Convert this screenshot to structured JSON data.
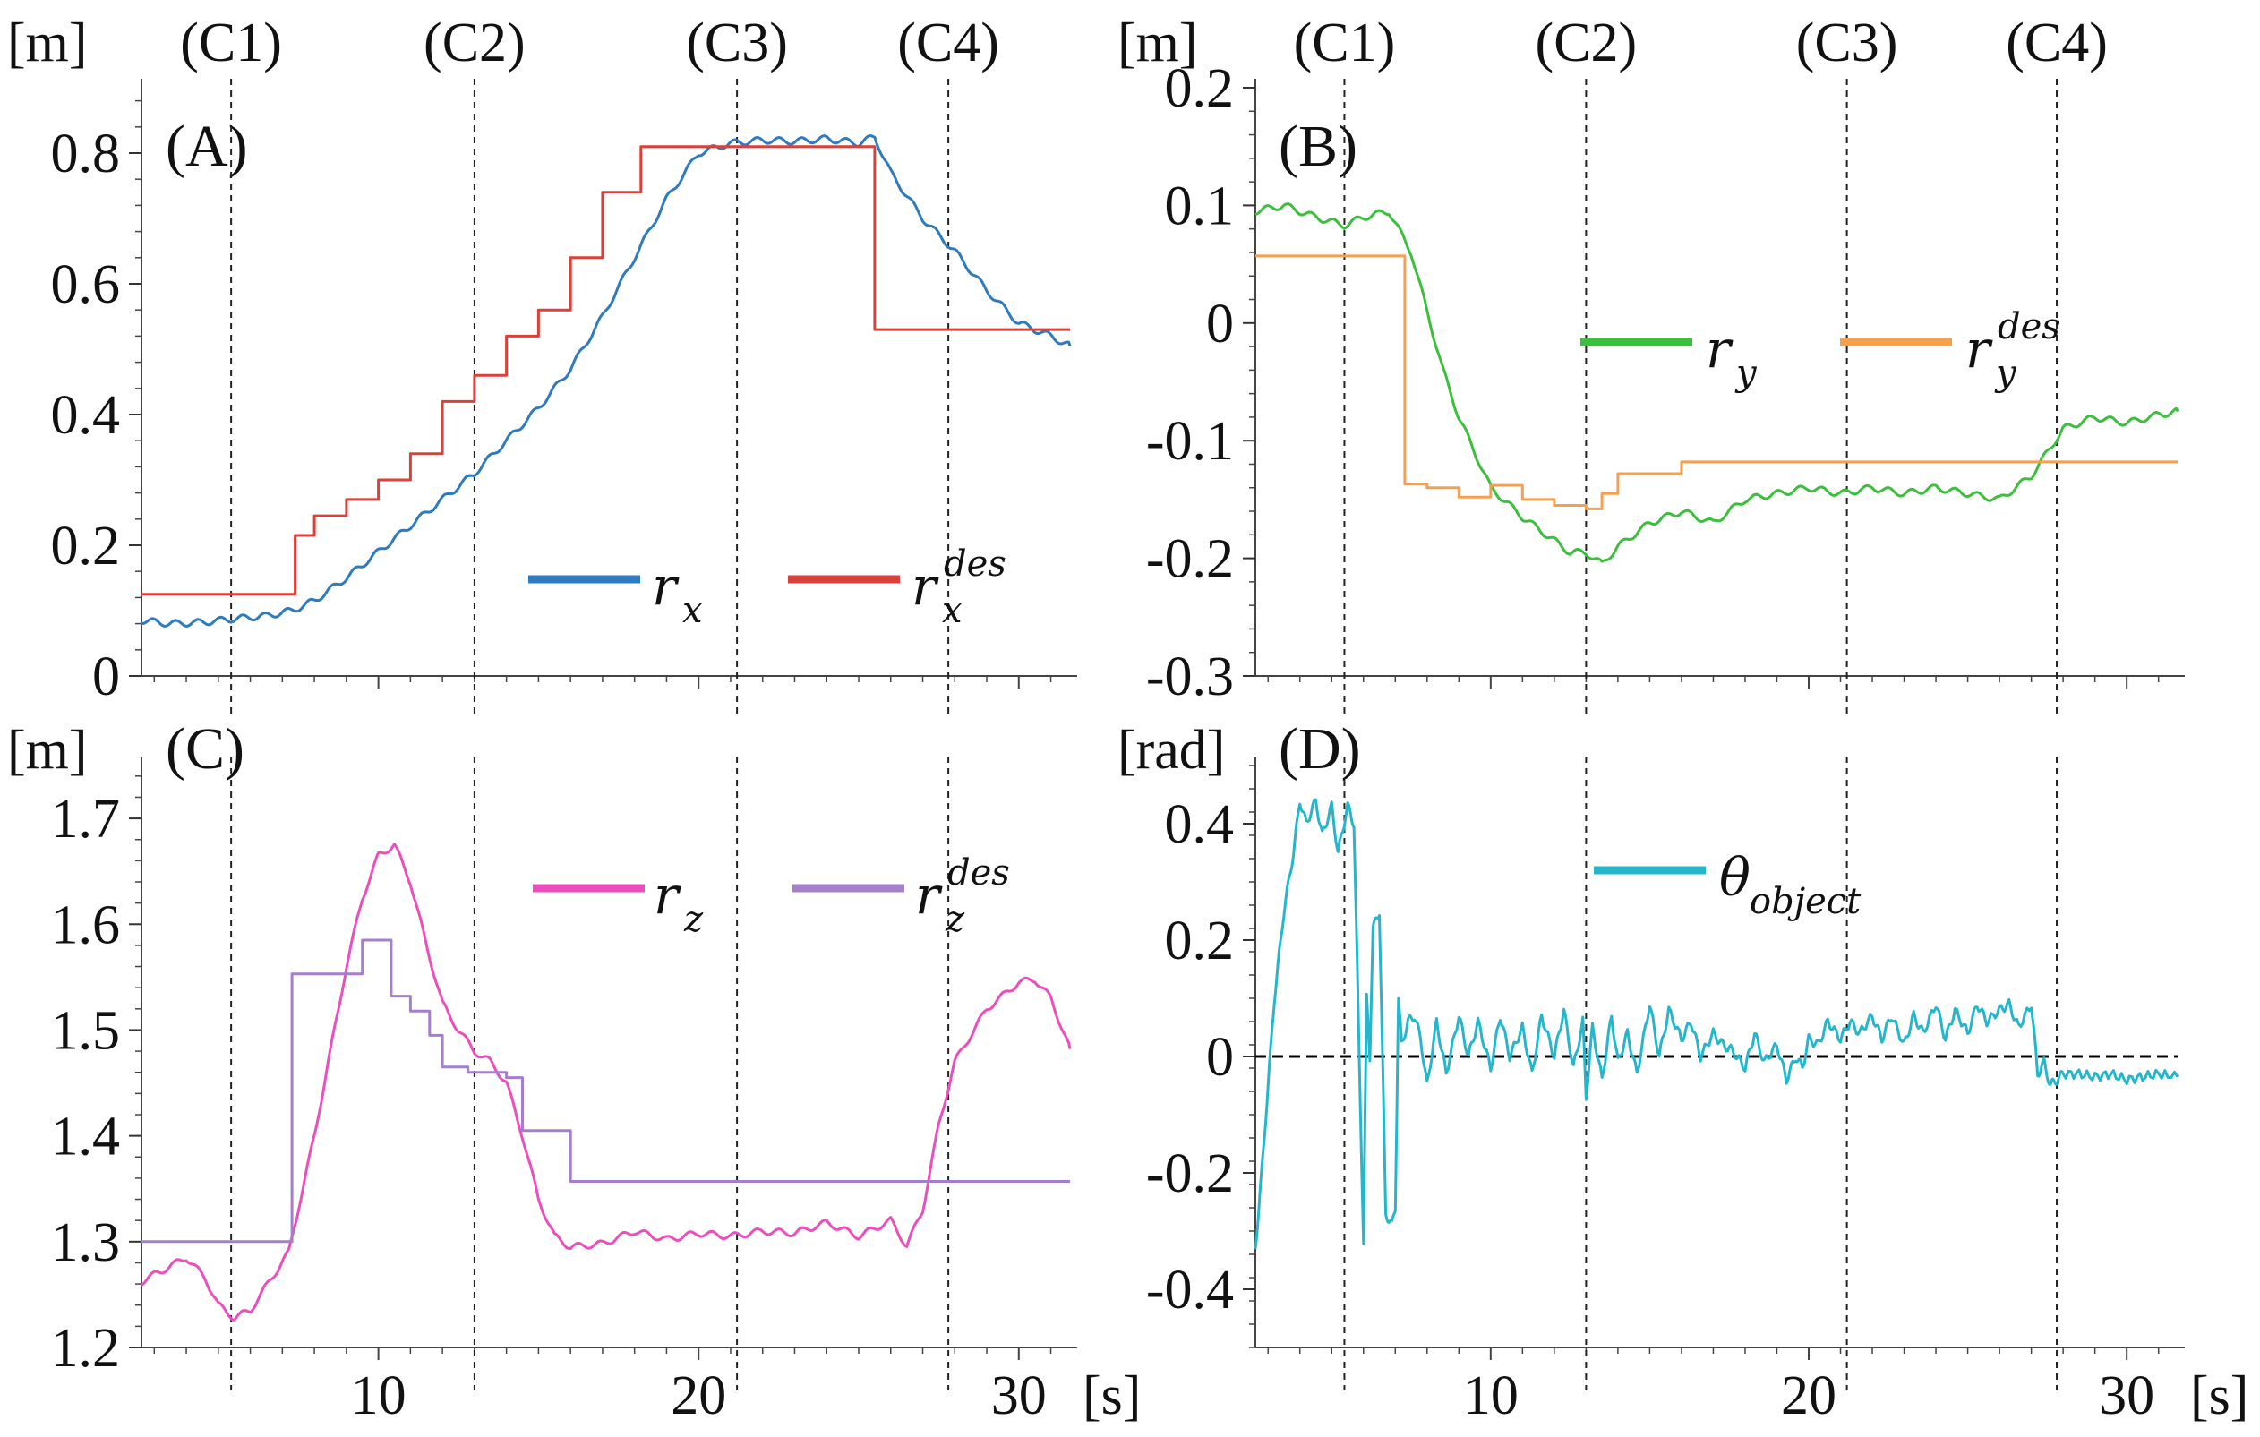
{
  "chart_data": [
    {
      "id": "A",
      "type": "line",
      "panel_label": "(A)",
      "unit_label": "[m]",
      "xlim": [
        2.6,
        31.6
      ],
      "ylim": [
        0,
        0.9
      ],
      "yticks": [
        0,
        0.2,
        0.4,
        0.6,
        0.8
      ],
      "ytick_labels": [
        "0",
        "0.2",
        "0.4",
        "0.6",
        "0.8"
      ],
      "event_markers": [
        {
          "label": "(C1)",
          "x": 5.4
        },
        {
          "label": "(C2)",
          "x": 13.0
        },
        {
          "label": "(C3)",
          "x": 21.2
        },
        {
          "label": "(C4)",
          "x": 27.8
        }
      ],
      "legend_position": "bottom-right",
      "series": [
        {
          "name": "r",
          "sub": "x",
          "sup": "",
          "color": "#2e7bbf",
          "style": "smooth",
          "x": [
            2.6,
            3.5,
            4.5,
            5.4,
            6.5,
            7.3,
            8.0,
            9.0,
            10.0,
            11.0,
            12.0,
            13.0,
            14.0,
            15.0,
            16.0,
            17.0,
            18.0,
            19.0,
            20.0,
            21.0,
            22.0,
            23.0,
            24.0,
            25.0,
            25.5,
            26.0,
            27.0,
            28.0,
            29.0,
            30.0,
            31.0,
            31.6
          ],
          "y": [
            0.085,
            0.08,
            0.082,
            0.087,
            0.092,
            0.1,
            0.115,
            0.15,
            0.19,
            0.23,
            0.27,
            0.31,
            0.36,
            0.41,
            0.47,
            0.55,
            0.64,
            0.73,
            0.8,
            0.815,
            0.82,
            0.818,
            0.822,
            0.815,
            0.825,
            0.77,
            0.7,
            0.65,
            0.59,
            0.54,
            0.52,
            0.505
          ]
        },
        {
          "name": "r",
          "sub": "x",
          "sup": "des",
          "color": "#d9413b",
          "style": "step",
          "x": [
            2.6,
            7.4,
            7.4,
            8.0,
            9.0,
            10.0,
            11.0,
            12.0,
            13.0,
            14.0,
            15.0,
            16.0,
            17.0,
            18.2,
            18.2,
            25.5,
            25.5,
            31.6
          ],
          "y": [
            0.125,
            0.125,
            0.2,
            0.215,
            0.245,
            0.27,
            0.3,
            0.34,
            0.42,
            0.46,
            0.52,
            0.56,
            0.64,
            0.74,
            0.81,
            0.81,
            0.53,
            0.53
          ]
        }
      ]
    },
    {
      "id": "B",
      "type": "line",
      "panel_label": "(B)",
      "unit_label": "[m]",
      "xlim": [
        2.6,
        31.6
      ],
      "ylim": [
        -0.3,
        0.2
      ],
      "yticks": [
        -0.3,
        -0.2,
        -0.1,
        0,
        0.1,
        0.2
      ],
      "ytick_labels": [
        "-0.3",
        "-0.2",
        "-0.1",
        "0",
        "0.1",
        "0.2"
      ],
      "event_markers": [
        {
          "label": "(C1)",
          "x": 5.4
        },
        {
          "label": "(C2)",
          "x": 13.0
        },
        {
          "label": "(C3)",
          "x": 21.2
        },
        {
          "label": "(C4)",
          "x": 27.8
        }
      ],
      "legend_position": "top-right",
      "series": [
        {
          "name": "r",
          "sub": "y",
          "sup": "",
          "color": "#3cbf3c",
          "style": "smooth",
          "x": [
            2.6,
            3.5,
            4.5,
            5.4,
            6.0,
            6.8,
            7.5,
            8.0,
            8.5,
            9.0,
            9.5,
            10.0,
            11.0,
            12.0,
            12.5,
            13.0,
            13.5,
            14.0,
            15.0,
            16.0,
            17.0,
            18.0,
            19.0,
            20.0,
            21.0,
            22.0,
            23.0,
            24.0,
            25.0,
            26.0,
            27.0,
            27.5,
            28.0,
            29.0,
            30.0,
            31.0,
            31.6
          ],
          "y": [
            0.095,
            0.1,
            0.09,
            0.083,
            0.09,
            0.095,
            0.06,
            0.01,
            -0.04,
            -0.08,
            -0.11,
            -0.14,
            -0.165,
            -0.185,
            -0.195,
            -0.195,
            -0.205,
            -0.19,
            -0.17,
            -0.16,
            -0.17,
            -0.15,
            -0.145,
            -0.14,
            -0.145,
            -0.14,
            -0.145,
            -0.14,
            -0.145,
            -0.15,
            -0.13,
            -0.11,
            -0.09,
            -0.08,
            -0.085,
            -0.078,
            -0.075
          ]
        },
        {
          "name": "r",
          "sub": "y",
          "sup": "des",
          "color": "#f5a04f",
          "style": "step",
          "x": [
            2.6,
            7.3,
            7.3,
            8.0,
            8.0,
            9.0,
            9.0,
            10.0,
            10.0,
            11.0,
            11.0,
            12.0,
            12.0,
            13.0,
            13.0,
            13.5,
            13.5,
            14.0,
            14.0,
            16.0,
            16.0,
            31.6
          ],
          "y": [
            0.057,
            0.057,
            -0.137,
            -0.137,
            -0.14,
            -0.14,
            -0.148,
            -0.148,
            -0.138,
            -0.138,
            -0.15,
            -0.15,
            -0.155,
            -0.155,
            -0.158,
            -0.158,
            -0.145,
            -0.145,
            -0.128,
            -0.128,
            -0.118,
            -0.118
          ]
        }
      ]
    },
    {
      "id": "C",
      "type": "line",
      "panel_label": "(C)",
      "unit_label": "[m]",
      "xlim": [
        2.6,
        31.6
      ],
      "ylim": [
        1.2,
        1.75
      ],
      "yticks": [
        1.2,
        1.3,
        1.4,
        1.5,
        1.6,
        1.7
      ],
      "ytick_labels": [
        "1.2",
        "1.3",
        "1.4",
        "1.5",
        "1.6",
        "1.7"
      ],
      "xticks": [
        10,
        20,
        30
      ],
      "xtick_labels": [
        "10",
        "20",
        "30"
      ],
      "xunit_label": "[s]",
      "event_markers": [
        {
          "label": "",
          "x": 5.4
        },
        {
          "label": "",
          "x": 13.0
        },
        {
          "label": "",
          "x": 21.2
        },
        {
          "label": "",
          "x": 27.8
        }
      ],
      "legend_position": "top-right",
      "series": [
        {
          "name": "r",
          "sub": "z",
          "sup": "",
          "color": "#ec4fbd",
          "style": "smooth",
          "x": [
            2.6,
            3.2,
            4.0,
            4.6,
            5.0,
            5.5,
            6.0,
            6.5,
            7.2,
            8.0,
            9.0,
            9.5,
            10.0,
            10.5,
            11.0,
            11.5,
            12.0,
            12.5,
            13.0,
            13.5,
            14.0,
            14.5,
            15.0,
            15.5,
            16.0,
            17.0,
            18.0,
            19.0,
            20.0,
            21.0,
            22.0,
            23.0,
            24.0,
            25.0,
            26.0,
            26.5,
            27.0,
            27.5,
            28.0,
            29.0,
            30.0,
            30.5,
            31.0,
            31.6
          ],
          "y": [
            1.262,
            1.272,
            1.285,
            1.265,
            1.24,
            1.228,
            1.235,
            1.258,
            1.29,
            1.4,
            1.56,
            1.625,
            1.665,
            1.675,
            1.64,
            1.58,
            1.525,
            1.5,
            1.48,
            1.47,
            1.45,
            1.4,
            1.34,
            1.305,
            1.295,
            1.298,
            1.31,
            1.302,
            1.308,
            1.305,
            1.31,
            1.308,
            1.318,
            1.305,
            1.32,
            1.296,
            1.33,
            1.41,
            1.47,
            1.52,
            1.545,
            1.548,
            1.53,
            1.482
          ]
        },
        {
          "name": "r",
          "sub": "z",
          "sup": "des",
          "color": "#a47fcb",
          "style": "step",
          "x": [
            2.6,
            7.3,
            7.3,
            9.5,
            9.5,
            10.4,
            10.4,
            11.0,
            11.0,
            11.6,
            11.6,
            12.0,
            12.0,
            12.8,
            12.8,
            14.0,
            14.0,
            14.5,
            14.5,
            16.0,
            16.0,
            31.6
          ],
          "y": [
            1.3,
            1.3,
            1.553,
            1.553,
            1.585,
            1.585,
            1.532,
            1.532,
            1.518,
            1.518,
            1.495,
            1.495,
            1.465,
            1.465,
            1.46,
            1.46,
            1.455,
            1.455,
            1.405,
            1.405,
            1.357,
            1.357
          ]
        }
      ]
    },
    {
      "id": "D",
      "type": "line",
      "panel_label": "(D)",
      "unit_label": "[rad]",
      "xlim": [
        2.6,
        31.6
      ],
      "ylim": [
        -0.5,
        0.5
      ],
      "yticks": [
        -0.4,
        -0.2,
        0,
        0.2,
        0.4
      ],
      "ytick_labels": [
        "-0.4",
        "-0.2",
        "0",
        "0.2",
        "0.4"
      ],
      "xticks": [
        10,
        20,
        30
      ],
      "xtick_labels": [
        "10",
        "20",
        "30"
      ],
      "xunit_label": "[s]",
      "event_markers": [
        {
          "label": "",
          "x": 5.4
        },
        {
          "label": "",
          "x": 13.0
        },
        {
          "label": "",
          "x": 21.2
        },
        {
          "label": "",
          "x": 27.8
        }
      ],
      "reference_line": 0,
      "legend_position": "top-center",
      "series": [
        {
          "name": "θ",
          "sub": "object",
          "sup": "",
          "color": "#26b6cc",
          "style": "raw",
          "x": [
            2.6,
            2.8,
            3.0,
            3.2,
            3.5,
            3.8,
            4.0,
            4.2,
            4.5,
            4.7,
            5.0,
            5.2,
            5.5,
            5.7,
            6.0,
            6.1,
            6.2,
            6.3,
            6.5,
            6.7,
            6.9,
            7.0,
            7.1,
            7.2,
            7.4,
            7.6,
            7.8,
            8.0,
            8.3,
            8.6,
            9.0,
            9.3,
            9.6,
            10.0,
            10.3,
            10.6,
            11.0,
            11.3,
            11.6,
            12.0,
            12.3,
            12.6,
            12.9,
            13.0,
            13.2,
            13.5,
            13.8,
            14.0,
            14.3,
            14.6,
            15.0,
            15.3,
            15.6,
            16.0,
            16.3,
            16.6,
            17.0,
            17.3,
            17.6,
            18.0,
            18.3,
            18.6,
            19.0,
            19.3,
            19.6,
            19.8,
            20.0,
            20.3,
            20.6,
            21.0,
            21.3,
            21.6,
            22.0,
            22.3,
            22.6,
            23.0,
            23.3,
            23.6,
            24.0,
            24.3,
            24.6,
            25.0,
            25.3,
            25.6,
            26.0,
            26.3,
            26.6,
            27.0,
            27.2,
            27.4,
            27.6,
            27.8,
            28.0,
            28.5,
            29.0,
            29.5,
            30.0,
            30.5,
            31.0,
            31.6
          ],
          "y": [
            -0.33,
            -0.2,
            -0.05,
            0.1,
            0.25,
            0.35,
            0.44,
            0.4,
            0.44,
            0.38,
            0.43,
            0.35,
            0.43,
            0.4,
            -0.32,
            0.1,
            0.0,
            0.22,
            0.25,
            -0.27,
            -0.29,
            -0.26,
            0.1,
            0.02,
            0.06,
            0.07,
            0.03,
            -0.05,
            0.06,
            -0.03,
            0.07,
            0.0,
            0.06,
            -0.02,
            0.07,
            0.0,
            0.05,
            -0.03,
            0.07,
            0.0,
            0.08,
            -0.02,
            0.06,
            -0.07,
            0.05,
            -0.04,
            0.07,
            -0.01,
            0.04,
            -0.03,
            0.09,
            0.0,
            0.08,
            0.03,
            0.06,
            0.0,
            0.04,
            0.02,
            0.01,
            -0.02,
            0.04,
            -0.01,
            0.02,
            -0.04,
            0.0,
            -0.02,
            0.03,
            0.02,
            0.06,
            0.03,
            0.06,
            0.04,
            0.07,
            0.03,
            0.07,
            0.02,
            0.07,
            0.04,
            0.09,
            0.03,
            0.08,
            0.04,
            0.09,
            0.06,
            0.08,
            0.09,
            0.05,
            0.09,
            -0.03,
            -0.01,
            -0.05,
            -0.04,
            -0.03,
            -0.03,
            -0.035,
            -0.03,
            -0.04,
            -0.035,
            -0.03,
            -0.035
          ]
        }
      ]
    }
  ]
}
